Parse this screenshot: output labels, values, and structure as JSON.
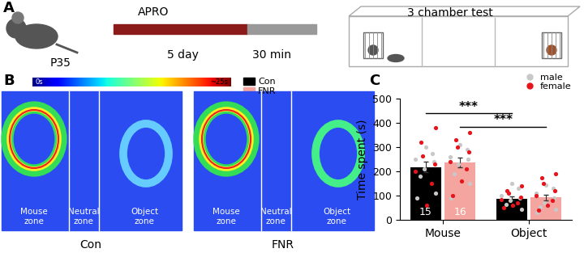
{
  "panel_letters": [
    "A",
    "B",
    "C"
  ],
  "panel_a": {
    "age": "P35",
    "treatment": "APRO",
    "treatment_duration": "5 day",
    "delay": "30 min",
    "test": "3 chamber test"
  },
  "panel_b": {
    "colorbar": {
      "range": [
        0,
        25
      ],
      "labels": [
        "0s",
        "~25s"
      ]
    },
    "legend": [
      {
        "name": "Con",
        "color": "#000000"
      },
      {
        "name": "FNR",
        "color": "#f4a5a0"
      }
    ],
    "zones": [
      "Mouse\nzone",
      "Neutral\nzone",
      "Object\nzone"
    ],
    "maps": [
      "Con",
      "FNR"
    ]
  },
  "chart_data": {
    "type": "bar",
    "categories": [
      "Mouse",
      "Object"
    ],
    "y_label": "Time spent (s)",
    "ylim": [
      0,
      500
    ],
    "yticks": [
      0,
      100,
      200,
      300,
      400,
      500
    ],
    "legend": "upper right",
    "series": [
      {
        "name": "Con",
        "color": "#000000",
        "values": [
          218,
          88
        ],
        "errors": [
          22,
          8
        ],
        "n": 15,
        "points": [
          {
            "male": [
              300,
              275,
              250,
              240,
              210,
              180,
              110,
              90
            ],
            "female": [
              380,
              320,
              265,
              230,
              200,
              150,
              60
            ]
          },
          {
            "male": [
              150,
              130,
              100,
              90,
              80,
              65,
              45
            ],
            "female": [
              140,
              120,
              110,
              95,
              85,
              70,
              60,
              50
            ]
          }
        ]
      },
      {
        "name": "FNR",
        "color": "#f4a5a0",
        "values": [
          238,
          92
        ],
        "errors": [
          20,
          12
        ],
        "n": 16,
        "points": [
          {
            "male": [
              310,
              290,
              260,
              250,
              230,
              190,
              150,
              90
            ],
            "female": [
              360,
              330,
              300,
              280,
              240,
              210,
              160,
              100
            ]
          },
          {
            "male": [
              145,
              130,
              110,
              90,
              70,
              55,
              45,
              30
            ],
            "female": [
              190,
              175,
              150,
              120,
              100,
              80,
              60,
              40
            ]
          }
        ]
      }
    ],
    "point_groups": [
      {
        "name": "male",
        "color": "#c8c8c8"
      },
      {
        "name": "female",
        "color": "#e8141b"
      }
    ],
    "annotations": [
      {
        "text": "***",
        "from": [
          0,
          0
        ],
        "to": [
          1,
          0
        ],
        "y": 440
      },
      {
        "text": "***",
        "from": [
          0,
          1
        ],
        "to": [
          1,
          1
        ],
        "y": 385
      }
    ]
  }
}
